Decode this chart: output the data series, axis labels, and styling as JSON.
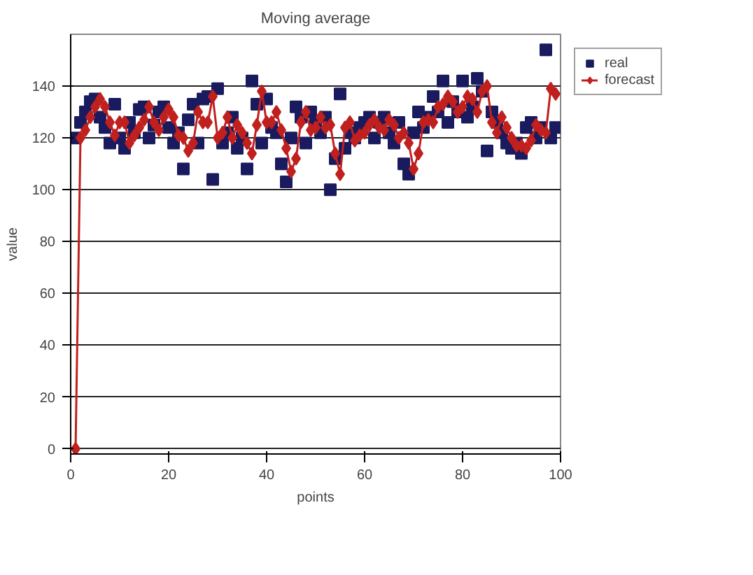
{
  "chart_data": {
    "type": "scatter",
    "title": "Moving average",
    "xlabel": "points",
    "ylabel": "value",
    "xlim": [
      0,
      100
    ],
    "xticks": [
      0,
      20,
      40,
      60,
      80,
      100
    ],
    "ylim": [
      -2,
      160
    ],
    "yticks": [
      0,
      20,
      40,
      60,
      80,
      100,
      120,
      140
    ],
    "grid": "y",
    "legend": "top right",
    "x": [
      1,
      2,
      3,
      4,
      5,
      6,
      7,
      8,
      9,
      10,
      11,
      12,
      13,
      14,
      15,
      16,
      17,
      18,
      19,
      20,
      21,
      22,
      23,
      24,
      25,
      26,
      27,
      28,
      29,
      30,
      31,
      32,
      33,
      34,
      35,
      36,
      37,
      38,
      39,
      40,
      41,
      42,
      43,
      44,
      45,
      46,
      47,
      48,
      49,
      50,
      51,
      52,
      53,
      54,
      55,
      56,
      57,
      58,
      59,
      60,
      61,
      62,
      63,
      64,
      65,
      66,
      67,
      68,
      69,
      70,
      71,
      72,
      73,
      74,
      75,
      76,
      77,
      78,
      79,
      80,
      81,
      82,
      83,
      84,
      85,
      86,
      87,
      88,
      89,
      90,
      91,
      92,
      93,
      94,
      95,
      96,
      97,
      98,
      99
    ],
    "series": [
      {
        "name": "real",
        "type": "scatter",
        "marker": "square",
        "color": "#1a1a5e",
        "values": [
          120,
          126,
          130,
          134,
          135,
          128,
          124,
          118,
          133,
          120,
          116,
          126,
          122,
          131,
          132,
          120,
          125,
          130,
          132,
          124,
          118,
          122,
          108,
          127,
          133,
          118,
          135,
          136,
          104,
          139,
          118,
          122,
          128,
          116,
          120,
          108,
          142,
          133,
          118,
          135,
          124,
          122,
          110,
          103,
          120,
          132,
          128,
          118,
          130,
          126,
          122,
          128,
          100,
          112,
          137,
          116,
          122,
          120,
          124,
          126,
          128,
          120,
          126,
          128,
          122,
          118,
          126,
          110,
          106,
          122,
          130,
          124,
          128,
          136,
          130,
          142,
          126,
          134,
          130,
          142,
          128,
          132,
          143,
          138,
          115,
          130,
          126,
          122,
          118,
          116,
          118,
          114,
          124,
          126,
          120,
          124,
          154,
          120,
          124
        ]
      },
      {
        "name": "forecast",
        "type": "line",
        "marker": "diamond",
        "color": "#c0201e",
        "values": [
          0,
          120,
          123,
          128,
          132,
          135,
          132,
          126,
          121,
          126,
          126,
          118,
          121,
          124,
          127,
          132,
          126,
          123,
          128,
          131,
          128,
          121,
          120,
          115,
          118,
          130,
          126,
          126,
          136,
          120,
          122,
          128,
          120,
          125,
          122,
          118,
          114,
          125,
          138,
          126,
          126,
          130,
          123,
          116,
          107,
          112,
          126,
          130,
          123,
          124,
          128,
          124,
          125,
          114,
          106,
          124,
          126,
          119,
          121,
          122,
          125,
          127,
          124,
          123,
          127,
          125,
          120,
          122,
          118,
          108,
          114,
          126,
          127,
          126,
          132,
          133,
          136,
          134,
          130,
          132,
          136,
          135,
          130,
          138,
          140,
          126,
          122,
          128,
          124,
          120,
          117,
          117,
          116,
          119,
          125,
          123,
          122,
          139,
          137
        ]
      }
    ]
  }
}
